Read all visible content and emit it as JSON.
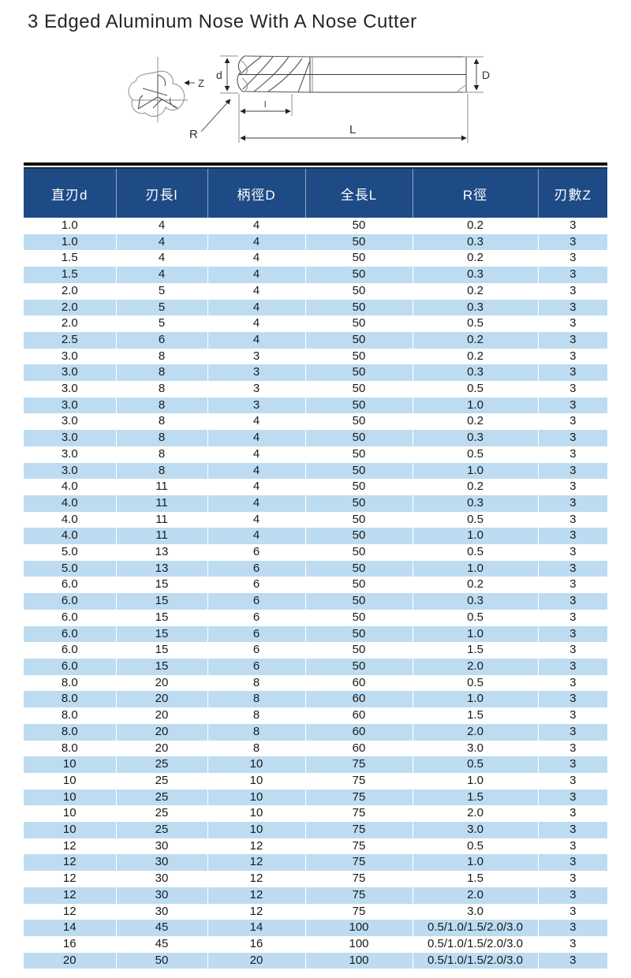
{
  "page": {
    "title": "3 Edged Aluminum Nose With A Nose Cutter"
  },
  "diagram": {
    "labels": {
      "flutes_z": "Z",
      "cut_diameter": "d",
      "shank_diameter": "D",
      "flute_length": "l",
      "overall_length": "L",
      "corner_radius": "R"
    }
  },
  "table": {
    "headers": [
      "直刃d",
      "刃長l",
      "柄徑D",
      "全長L",
      "R徑",
      "刃數Z"
    ],
    "rows": [
      [
        "1.0",
        "4",
        "4",
        "50",
        "0.2",
        "3"
      ],
      [
        "1.0",
        "4",
        "4",
        "50",
        "0.3",
        "3"
      ],
      [
        "1.5",
        "4",
        "4",
        "50",
        "0.2",
        "3"
      ],
      [
        "1.5",
        "4",
        "4",
        "50",
        "0.3",
        "3"
      ],
      [
        "2.0",
        "5",
        "4",
        "50",
        "0.2",
        "3"
      ],
      [
        "2.0",
        "5",
        "4",
        "50",
        "0.3",
        "3"
      ],
      [
        "2.0",
        "5",
        "4",
        "50",
        "0.5",
        "3"
      ],
      [
        "2.5",
        "6",
        "4",
        "50",
        "0.2",
        "3"
      ],
      [
        "3.0",
        "8",
        "3",
        "50",
        "0.2",
        "3"
      ],
      [
        "3.0",
        "8",
        "3",
        "50",
        "0.3",
        "3"
      ],
      [
        "3.0",
        "8",
        "3",
        "50",
        "0.5",
        "3"
      ],
      [
        "3.0",
        "8",
        "3",
        "50",
        "1.0",
        "3"
      ],
      [
        "3.0",
        "8",
        "4",
        "50",
        "0.2",
        "3"
      ],
      [
        "3.0",
        "8",
        "4",
        "50",
        "0.3",
        "3"
      ],
      [
        "3.0",
        "8",
        "4",
        "50",
        "0.5",
        "3"
      ],
      [
        "3.0",
        "8",
        "4",
        "50",
        "1.0",
        "3"
      ],
      [
        "4.0",
        "11",
        "4",
        "50",
        "0.2",
        "3"
      ],
      [
        "4.0",
        "11",
        "4",
        "50",
        "0.3",
        "3"
      ],
      [
        "4.0",
        "11",
        "4",
        "50",
        "0.5",
        "3"
      ],
      [
        "4.0",
        "11",
        "4",
        "50",
        "1.0",
        "3"
      ],
      [
        "5.0",
        "13",
        "6",
        "50",
        "0.5",
        "3"
      ],
      [
        "5.0",
        "13",
        "6",
        "50",
        "1.0",
        "3"
      ],
      [
        "6.0",
        "15",
        "6",
        "50",
        "0.2",
        "3"
      ],
      [
        "6.0",
        "15",
        "6",
        "50",
        "0.3",
        "3"
      ],
      [
        "6.0",
        "15",
        "6",
        "50",
        "0.5",
        "3"
      ],
      [
        "6.0",
        "15",
        "6",
        "50",
        "1.0",
        "3"
      ],
      [
        "6.0",
        "15",
        "6",
        "50",
        "1.5",
        "3"
      ],
      [
        "6.0",
        "15",
        "6",
        "50",
        "2.0",
        "3"
      ],
      [
        "8.0",
        "20",
        "8",
        "60",
        "0.5",
        "3"
      ],
      [
        "8.0",
        "20",
        "8",
        "60",
        "1.0",
        "3"
      ],
      [
        "8.0",
        "20",
        "8",
        "60",
        "1.5",
        "3"
      ],
      [
        "8.0",
        "20",
        "8",
        "60",
        "2.0",
        "3"
      ],
      [
        "8.0",
        "20",
        "8",
        "60",
        "3.0",
        "3"
      ],
      [
        "10",
        "25",
        "10",
        "75",
        "0.5",
        "3"
      ],
      [
        "10",
        "25",
        "10",
        "75",
        "1.0",
        "3"
      ],
      [
        "10",
        "25",
        "10",
        "75",
        "1.5",
        "3"
      ],
      [
        "10",
        "25",
        "10",
        "75",
        "2.0",
        "3"
      ],
      [
        "10",
        "25",
        "10",
        "75",
        "3.0",
        "3"
      ],
      [
        "12",
        "30",
        "12",
        "75",
        "0.5",
        "3"
      ],
      [
        "12",
        "30",
        "12",
        "75",
        "1.0",
        "3"
      ],
      [
        "12",
        "30",
        "12",
        "75",
        "1.5",
        "3"
      ],
      [
        "12",
        "30",
        "12",
        "75",
        "2.0",
        "3"
      ],
      [
        "12",
        "30",
        "12",
        "75",
        "3.0",
        "3"
      ],
      [
        "14",
        "45",
        "14",
        "100",
        "0.5/1.0/1.5/2.0/3.0",
        "3"
      ],
      [
        "16",
        "45",
        "16",
        "100",
        "0.5/1.0/1.5/2.0/3.0",
        "3"
      ],
      [
        "20",
        "50",
        "20",
        "100",
        "0.5/1.0/1.5/2.0/3.0",
        "3"
      ]
    ]
  },
  "colors": {
    "header_bg": "#1e4b86",
    "stripe": "#bddcf1",
    "top_bar": "#0f0f0f",
    "text": "#1a1a1a"
  }
}
